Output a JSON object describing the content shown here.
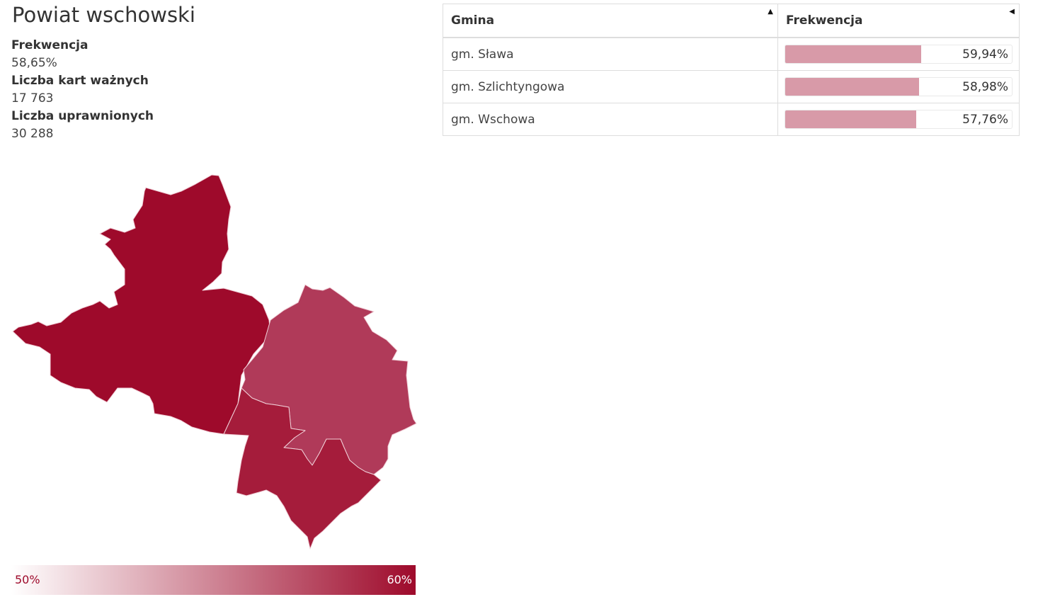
{
  "title": "Powiat wschowski",
  "stats": [
    {
      "label": "Frekwencja",
      "value": "58,65%"
    },
    {
      "label": "Liczba kart ważnych",
      "value": "17 763"
    },
    {
      "label": "Liczba uprawnionych",
      "value": "30 288"
    }
  ],
  "map": {
    "regions": [
      {
        "name": "gm. Sława",
        "turnout_pct": 59.94,
        "color": "#9e0a2b"
      },
      {
        "name": "gm. Szlichtyngowa",
        "turnout_pct": 58.98,
        "color": "#a51c3b"
      },
      {
        "name": "gm. Wschowa",
        "turnout_pct": 57.76,
        "color": "#b03a59"
      }
    ],
    "border_color": "#f0d0d8"
  },
  "legend": {
    "min_label": "50%",
    "max_label": "60%",
    "min_value": 50,
    "max_value": 60,
    "color_low": "#ffffff",
    "color_high": "#9e0a2b"
  },
  "table": {
    "headers": {
      "gmina": "Gmina",
      "frekwencja": "Frekwencja"
    },
    "sort_icon_asc": "sort-up-icon",
    "sort_icon_left": "sort-left-icon",
    "rows": [
      {
        "gmina": "gm. Sława",
        "value_label": "59,94%",
        "value": 59.94
      },
      {
        "gmina": "gm. Szlichtyngowa",
        "value_label": "58,98%",
        "value": 58.98
      },
      {
        "gmina": "gm. Wschowa",
        "value_label": "57,76%",
        "value": 57.76
      }
    ],
    "bar_color": "#d89aa8"
  }
}
